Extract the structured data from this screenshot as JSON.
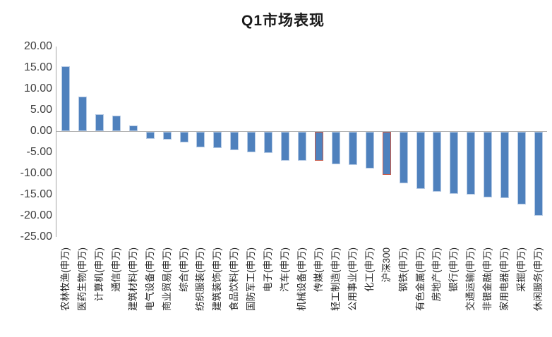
{
  "chart_data": {
    "type": "bar",
    "title": "Q1市场表现",
    "categories": [
      "农林牧渔(申万)",
      "医药生物(申万)",
      "计算机(申万)",
      "通信(申万)",
      "建筑材料(申万)",
      "电气设备(申万)",
      "商业贸易(申万)",
      "综合(申万)",
      "纺织服装(申万)",
      "建筑装饰(申万)",
      "食品饮料(申万)",
      "国防军工(申万)",
      "电子(申万)",
      "汽车(申万)",
      "机械设备(申万)",
      "传媒(申万)",
      "轻工制造(申万)",
      "公用事业(申万)",
      "化工(申万)",
      "沪深300",
      "钢铁(申万)",
      "有色金属(申万)",
      "房地产(申万)",
      "银行(申万)",
      "交通运输(申万)",
      "非银金融(申万)",
      "家用电器(申万)",
      "采掘(申万)",
      "休闲服务(申万)"
    ],
    "values": [
      15.4,
      8.2,
      4.0,
      3.7,
      1.3,
      -1.6,
      -1.8,
      -2.5,
      -3.7,
      -3.9,
      -4.3,
      -4.8,
      -5.0,
      -6.8,
      -6.8,
      -6.8,
      -7.7,
      -7.9,
      -8.6,
      -10.1,
      -12.1,
      -13.5,
      -14.1,
      -14.7,
      -14.8,
      -15.5,
      -15.7,
      -17.1,
      -19.9
    ],
    "highlighted": [
      "传媒(申万)",
      "沪深300"
    ],
    "ytick_labels": [
      "20.00",
      "15.00",
      "10.00",
      "5.00",
      "0.00",
      "-5.00",
      "-10.00",
      "-15.00",
      "-20.00",
      "-25.00"
    ],
    "ytick_values": [
      20,
      15,
      10,
      5,
      0,
      -5,
      -10,
      -15,
      -20,
      -25
    ],
    "ylim": [
      -25,
      20
    ],
    "grid": false,
    "legend": "none",
    "xlabel": "",
    "ylabel": "",
    "bar_color": "#4f81bd",
    "bar_outline_color": "#b7cbe5",
    "highlight_outline_color": "#c95c4b",
    "axis_color": "#a6a6a6",
    "text_color": "#3f3f3f"
  }
}
